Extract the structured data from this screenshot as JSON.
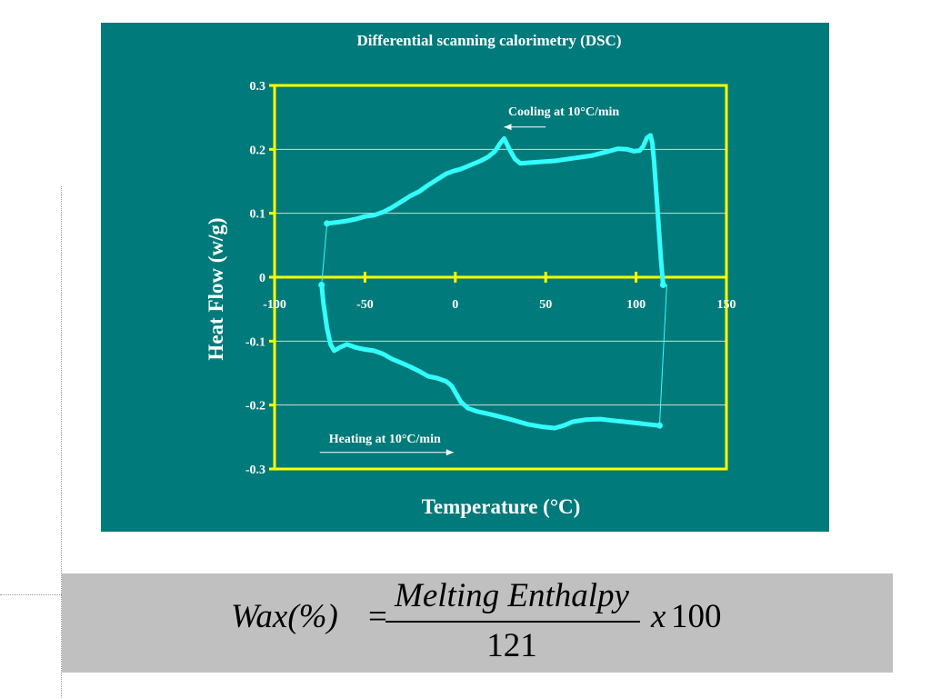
{
  "chart_data": {
    "type": "line",
    "title": "Differential scanning calorimetry (DSC)",
    "xlabel": "Temperature (°C)",
    "ylabel": "Heat Flow (w/g)",
    "xlim": [
      -100,
      150
    ],
    "ylim": [
      -0.3,
      0.3
    ],
    "x_ticks": [
      -100,
      -50,
      0,
      50,
      100,
      150
    ],
    "x_tick_labels": [
      "-100",
      "-50",
      "0",
      "50",
      "100",
      "150"
    ],
    "y_ticks": [
      -0.3,
      -0.2,
      -0.1,
      0,
      0.1,
      0.2,
      0.3
    ],
    "y_tick_labels": [
      "-0.3",
      "-0.2",
      "-0.1",
      "0",
      "0.1",
      "0.2",
      "0.3"
    ],
    "grid": true,
    "legend": "none",
    "colors": {
      "panel": "#007a7a",
      "curve": "#33ffff",
      "axes": "#ffff00",
      "grid": "#d8d8d8",
      "text": "#ffffff"
    },
    "annotations": [
      {
        "text": "Cooling at 10°C/min",
        "x": 60,
        "y": 0.26,
        "arrow_from": [
          50,
          0.235
        ],
        "arrow_to": [
          27,
          0.235
        ]
      },
      {
        "text": "Heating at 10°C/min",
        "x": -39,
        "y": -0.252,
        "arrow_from": [
          -75,
          -0.274
        ],
        "arrow_to": [
          -1,
          -0.274
        ]
      }
    ],
    "series": [
      {
        "label": "cooling",
        "points": [
          [
            115,
            -0.012
          ],
          [
            114,
            0.02
          ],
          [
            113,
            0.06
          ],
          [
            112,
            0.1
          ],
          [
            111,
            0.14
          ],
          [
            110,
            0.18
          ],
          [
            109,
            0.21
          ],
          [
            108,
            0.222
          ],
          [
            106,
            0.218
          ],
          [
            104,
            0.205
          ],
          [
            102,
            0.198
          ],
          [
            99,
            0.197
          ],
          [
            95,
            0.2
          ],
          [
            90,
            0.201
          ],
          [
            85,
            0.197
          ],
          [
            75,
            0.19
          ],
          [
            65,
            0.186
          ],
          [
            55,
            0.182
          ],
          [
            45,
            0.18
          ],
          [
            40,
            0.179
          ],
          [
            36,
            0.178
          ],
          [
            33,
            0.185
          ],
          [
            30,
            0.2
          ],
          [
            27,
            0.217
          ],
          [
            25,
            0.21
          ],
          [
            22,
            0.197
          ],
          [
            18,
            0.188
          ],
          [
            14,
            0.182
          ],
          [
            8,
            0.175
          ],
          [
            3,
            0.169
          ],
          [
            -1,
            0.166
          ],
          [
            -5,
            0.162
          ],
          [
            -10,
            0.153
          ],
          [
            -15,
            0.144
          ],
          [
            -20,
            0.134
          ],
          [
            -25,
            0.127
          ],
          [
            -30,
            0.118
          ],
          [
            -35,
            0.109
          ],
          [
            -40,
            0.102
          ],
          [
            -45,
            0.097
          ],
          [
            -50,
            0.095
          ],
          [
            -55,
            0.091
          ],
          [
            -60,
            0.088
          ],
          [
            -65,
            0.086
          ],
          [
            -71,
            0.084
          ]
        ]
      },
      {
        "label": "heating",
        "points": [
          [
            -74,
            -0.012
          ],
          [
            -73,
            -0.04
          ],
          [
            -71,
            -0.08
          ],
          [
            -69,
            -0.105
          ],
          [
            -67,
            -0.115
          ],
          [
            -64,
            -0.11
          ],
          [
            -60,
            -0.105
          ],
          [
            -55,
            -0.11
          ],
          [
            -50,
            -0.113
          ],
          [
            -45,
            -0.115
          ],
          [
            -40,
            -0.12
          ],
          [
            -35,
            -0.128
          ],
          [
            -30,
            -0.134
          ],
          [
            -25,
            -0.14
          ],
          [
            -20,
            -0.147
          ],
          [
            -15,
            -0.155
          ],
          [
            -10,
            -0.158
          ],
          [
            -5,
            -0.163
          ],
          [
            -2,
            -0.17
          ],
          [
            0,
            -0.18
          ],
          [
            3,
            -0.195
          ],
          [
            7,
            -0.205
          ],
          [
            12,
            -0.21
          ],
          [
            20,
            -0.215
          ],
          [
            30,
            -0.222
          ],
          [
            40,
            -0.23
          ],
          [
            48,
            -0.234
          ],
          [
            55,
            -0.236
          ],
          [
            60,
            -0.232
          ],
          [
            65,
            -0.226
          ],
          [
            72,
            -0.223
          ],
          [
            80,
            -0.222
          ],
          [
            90,
            -0.225
          ],
          [
            100,
            -0.228
          ],
          [
            106,
            -0.23
          ],
          [
            113,
            -0.232
          ]
        ]
      },
      {
        "label": "connector-left",
        "points": [
          [
            -71,
            0.084
          ],
          [
            -74,
            -0.012
          ]
        ]
      },
      {
        "label": "connector-right",
        "points": [
          [
            113,
            -0.232
          ],
          [
            117,
            -0.012
          ]
        ]
      }
    ]
  },
  "formula": {
    "lhs": "Wax(%)",
    "equals": "=",
    "numerator": "Melting Enthalpy",
    "denominator": "121",
    "times": "x",
    "factor": "100"
  }
}
